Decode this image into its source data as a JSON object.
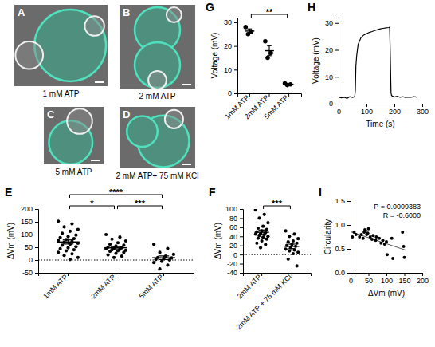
{
  "image_panels": [
    {
      "letter": "A",
      "caption": "1 mM ATP"
    },
    {
      "letter": "B",
      "caption": "2 mM ATP"
    },
    {
      "letter": "C",
      "caption": "5 mM ATP"
    },
    {
      "letter": "D",
      "caption": "2 mM ATP+ 75 mM KCl"
    }
  ],
  "chart_data": [
    {
      "panel": "G",
      "type": "dot",
      "y_label": "Voltage (mV)",
      "categories": [
        "1mM ATP",
        "2mM ATP",
        "5mM ATP"
      ],
      "values": [
        [
          28,
          26,
          25
        ],
        [
          22,
          17,
          15
        ],
        [
          4.2,
          3.8,
          3.5
        ]
      ],
      "means": [
        26.3,
        18,
        3.8
      ],
      "errors": [
        0.9,
        2.1,
        0.2
      ],
      "color": "#000000",
      "marker": "circle",
      "ylim": [
        0,
        32
      ],
      "yticks": [
        0,
        10,
        20,
        30
      ],
      "annotations": [
        {
          "text": "**",
          "between": [
            "1mM ATP",
            "5mM ATP"
          ]
        }
      ]
    },
    {
      "panel": "H",
      "type": "line",
      "x_label": "Time (s)",
      "y_label": "Voltage (mV)",
      "x": [
        0,
        10,
        20,
        30,
        40,
        50,
        55,
        58,
        60,
        62,
        65,
        70,
        80,
        90,
        100,
        110,
        120,
        130,
        140,
        150,
        160,
        170,
        180,
        183,
        185,
        188,
        190,
        200,
        210,
        220,
        230,
        240,
        250,
        260,
        270,
        280
      ],
      "values": [
        2.5,
        2.2,
        2.4,
        2.0,
        2.6,
        2.3,
        2.5,
        2.8,
        5,
        14,
        18,
        22,
        24.5,
        25.5,
        26,
        26.5,
        26.8,
        27.2,
        27.5,
        27.8,
        28,
        28.2,
        28.3,
        28.4,
        20,
        4,
        3,
        2.5,
        2.8,
        2.4,
        2.6,
        2.3,
        2.5,
        2.4,
        2.6,
        2.5
      ],
      "color": "#000000",
      "xlim": [
        0,
        300
      ],
      "xticks": [
        0,
        100,
        200,
        300
      ],
      "ylim": [
        0,
        32
      ],
      "yticks": [
        0,
        10,
        20,
        30
      ]
    },
    {
      "panel": "E",
      "type": "dot",
      "y_label": "ΔVm (mV)",
      "categories": [
        "1mM ATP",
        "2mM ATP",
        "5mM ATP"
      ],
      "values": [
        [
          152,
          142,
          130,
          120,
          113,
          105,
          98,
          92,
          88,
          84,
          80,
          76,
          72,
          70,
          66,
          62,
          58,
          52,
          48,
          44,
          40,
          36,
          30,
          24,
          18,
          10,
          2
        ],
        [
          100,
          90,
          82,
          75,
          68,
          62,
          58,
          55,
          50,
          48,
          46,
          44,
          42,
          40,
          38,
          36,
          34,
          30,
          26,
          20,
          15,
          10
        ],
        [
          62,
          45,
          30,
          22,
          15,
          10,
          8,
          5,
          2,
          0,
          -5,
          -10,
          -20,
          -35
        ]
      ],
      "means": [
        71,
        48,
        9
      ],
      "errors": [
        8,
        4.5,
        7
      ],
      "color": "#000000",
      "marker": "circle",
      "hline": 0,
      "ylim": [
        -50,
        200
      ],
      "yticks": [
        -50,
        0,
        50,
        100,
        150,
        200
      ],
      "annotations": [
        {
          "text": "*",
          "between": [
            "1mM ATP",
            "2mM ATP"
          ]
        },
        {
          "text": "***",
          "between": [
            "2mM ATP",
            "5mM ATP"
          ]
        },
        {
          "text": "****",
          "between": [
            "1mM ATP",
            "5mM ATP"
          ]
        }
      ]
    },
    {
      "panel": "F",
      "type": "dot",
      "y_label": "ΔVm (mV)",
      "categories": [
        "2mM ATP",
        "2mM ATP + 75 mM KCl"
      ],
      "values": [
        [
          98,
          88,
          80,
          70,
          62,
          58,
          55,
          52,
          50,
          48,
          46,
          45,
          44,
          42,
          40,
          38,
          36,
          34,
          30,
          25,
          22,
          15
        ],
        [
          52,
          45,
          40,
          35,
          30,
          28,
          25,
          22,
          20,
          18,
          15,
          12,
          10,
          8,
          5,
          2,
          -10,
          -25
        ]
      ],
      "means": [
        49,
        18
      ],
      "errors": [
        5,
        5
      ],
      "color": "#000000",
      "marker": "circle",
      "hline": 0,
      "ylim": [
        -40,
        100
      ],
      "yticks": [
        -40,
        -20,
        0,
        20,
        40,
        60,
        80,
        100
      ],
      "annotations": [
        {
          "text": "***",
          "between": [
            "2mM ATP",
            "2mM ATP + 75 mM KCl"
          ]
        }
      ]
    },
    {
      "panel": "I",
      "type": "scatter",
      "x_label": "ΔVm (mV)",
      "y_label": "Circularity",
      "x": [
        5,
        10,
        15,
        25,
        30,
        35,
        38,
        40,
        42,
        45,
        48,
        50,
        55,
        60,
        63,
        70,
        72,
        80,
        85,
        90,
        95,
        100,
        102,
        115,
        118,
        145,
        148,
        150
      ],
      "values": [
        0.75,
        0.85,
        0.8,
        0.75,
        0.8,
        0.72,
        0.85,
        0.9,
        0.88,
        0.8,
        0.83,
        0.92,
        0.75,
        0.7,
        0.78,
        0.68,
        0.75,
        0.72,
        0.62,
        0.68,
        0.6,
        0.65,
        0.38,
        0.72,
        0.3,
        0.85,
        0.55,
        0.32
      ],
      "trend_line": {
        "x": [
          0,
          155
        ],
        "y": [
          0.86,
          0.47
        ]
      },
      "color": "#000000",
      "marker": "circle",
      "xlim": [
        0,
        200
      ],
      "xticks": [
        0,
        50,
        100,
        150,
        200
      ],
      "ylim": [
        0,
        1.5
      ],
      "yticks": [
        {
          "value": 0,
          "label": "0.0"
        },
        {
          "value": 0.5,
          "label": "0.5"
        },
        {
          "value": 1,
          "label": "1.0"
        },
        {
          "value": 1.5,
          "label": "1.5"
        }
      ],
      "annotations": [
        "P = 0.0009383",
        "R = -0.6000"
      ]
    }
  ]
}
